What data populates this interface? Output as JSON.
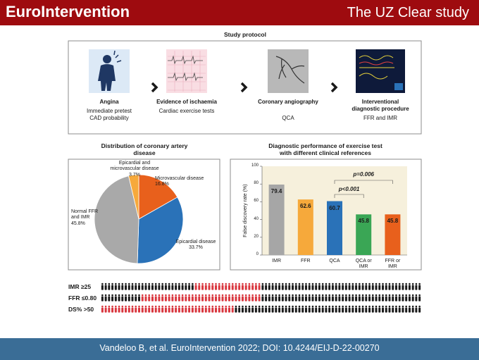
{
  "header": {
    "brand": "EuroIntervention",
    "title": "The UZ Clear study"
  },
  "protocol": {
    "title": "Study protocol",
    "steps": [
      {
        "title": "Angina",
        "subtitle": "Immediate pretest CAD probability"
      },
      {
        "title": "Evidence of ischaemia",
        "subtitle": "Cardiac exercise tests"
      },
      {
        "title": "Coronary angiography",
        "subtitle": "QCA"
      },
      {
        "title": "Interventional diagnostic procedure",
        "subtitle": "FFR and IMR"
      }
    ]
  },
  "chart_data": [
    {
      "type": "pie",
      "title": "Distribution of coronary artery disease",
      "categories": [
        "Microvascular disease",
        "Epicardial disease",
        "Normal FFR and IMR",
        "Epicardial and microvascular disease"
      ],
      "values": [
        16.8,
        33.7,
        45.8,
        3.7
      ],
      "value_labels": [
        "16.8%",
        "33.7%",
        "45.8%",
        "3.7%"
      ],
      "colors": [
        "#e8601c",
        "#2a72b8",
        "#a9a9a9",
        "#f6a93b"
      ]
    },
    {
      "type": "bar",
      "title": "Diagnostic performance of exercise test with different clinical references",
      "y_label": "False discovery rate (%)",
      "categories": [
        "IMR",
        "FFR",
        "QCA",
        "QCA or IMR",
        "FFR or IMR"
      ],
      "values": [
        79.4,
        62.6,
        60.7,
        45.8,
        45.8
      ],
      "colors": [
        "#a6a6a6",
        "#f6a93b",
        "#2a72b8",
        "#3aa655",
        "#e8601c"
      ],
      "ylim": [
        0,
        100
      ],
      "yticks": [
        0,
        20,
        40,
        60,
        80,
        100
      ],
      "annotations": [
        "p<0.001",
        "p=0.006"
      ]
    }
  ],
  "people": {
    "rows": [
      {
        "label": "IMR ≥25",
        "segments": [
          {
            "color": "#1a1a1a",
            "count": 28
          },
          {
            "color": "#d9363e",
            "count": 20
          },
          {
            "color": "#1a1a1a",
            "count": 48
          }
        ]
      },
      {
        "label": "FFR ≤0.80",
        "segments": [
          {
            "color": "#1a1a1a",
            "count": 12
          },
          {
            "color": "#d9363e",
            "count": 36
          },
          {
            "color": "#1a1a1a",
            "count": 48
          }
        ]
      },
      {
        "label": "DS% >50",
        "segments": [
          {
            "color": "#d9363e",
            "count": 40
          },
          {
            "color": "#1a1a1a",
            "count": 56
          }
        ]
      }
    ]
  },
  "footer": "Vandeloo B, et al. EuroIntervention 2022; DOI: 10.4244/EIJ-D-22-00270"
}
